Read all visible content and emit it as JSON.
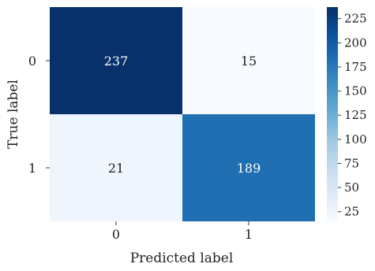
{
  "chart_data": {
    "type": "heatmap",
    "title": "",
    "xlabel": "Predicted label",
    "ylabel": "True label",
    "x_categories": [
      "0",
      "1"
    ],
    "y_categories": [
      "0",
      "1"
    ],
    "values": [
      [
        237,
        15
      ],
      [
        21,
        189
      ]
    ],
    "colormap": "Blues",
    "vmin": 15,
    "vmax": 237,
    "colorbar": {
      "ticks": [
        25,
        50,
        75,
        100,
        125,
        150,
        175,
        200,
        225
      ],
      "tick_labels": [
        "25",
        "50",
        "75",
        "100",
        "125",
        "150",
        "175",
        "200",
        "225"
      ]
    },
    "colors": {
      "237": "#08306b",
      "15": "#f7fbff",
      "21": "#eef5fc",
      "189": "#1f6fb2"
    }
  }
}
